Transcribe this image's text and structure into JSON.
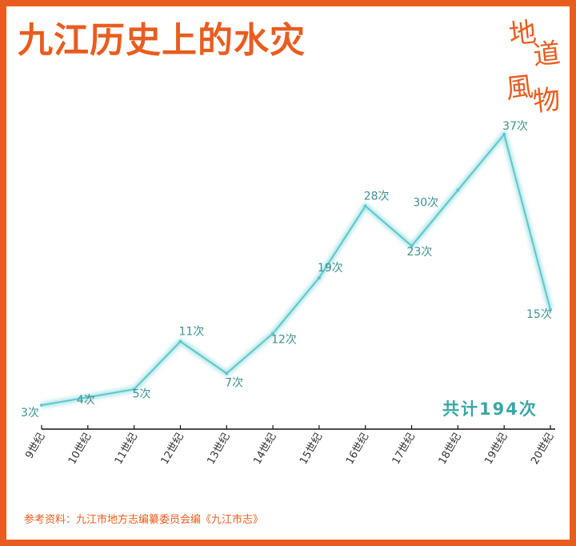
{
  "title": "九江历史上的水灾",
  "logo": {
    "chars": [
      "地",
      "道",
      "風",
      "物"
    ]
  },
  "total_label": "共计194次",
  "source": "参考资料：九江市地方志编纂委员会编《九江市志》",
  "colors": {
    "frame": "#e85d1f",
    "line": "#5cc8cc",
    "label": "#3f8f8f",
    "total": "#3aa6a6"
  },
  "chart_data": {
    "type": "line",
    "categories": [
      "9世纪",
      "10世纪",
      "11世纪",
      "12世纪",
      "13世纪",
      "14世纪",
      "15世纪",
      "16世纪",
      "17世纪",
      "18世纪",
      "19世纪",
      "20世纪"
    ],
    "values": [
      3,
      4,
      5,
      11,
      7,
      12,
      19,
      28,
      23,
      30,
      37,
      15
    ],
    "data_labels": [
      "3次",
      "4次",
      "5次",
      "11次",
      "7次",
      "12次",
      "19次",
      "28次",
      "23次",
      "30次",
      "37次",
      "15次"
    ],
    "title": "九江历史上的水灾",
    "xlabel": "",
    "ylabel": "",
    "ylim": [
      0,
      40
    ],
    "grid": false,
    "legend": "none"
  }
}
